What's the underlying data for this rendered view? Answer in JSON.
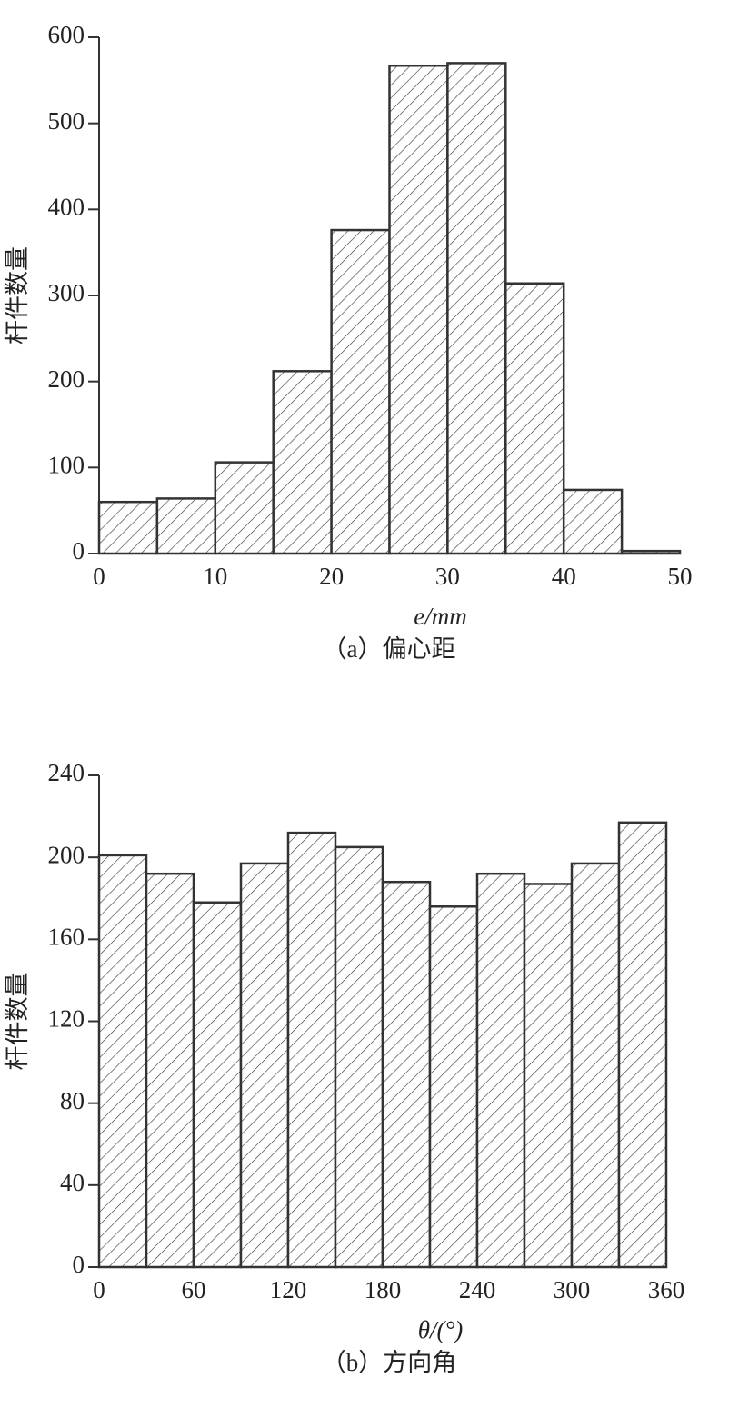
{
  "chart_data": [
    {
      "type": "histogram",
      "caption": "（a）偏心距",
      "x_label": "e/mm",
      "y_label": "杆件数量",
      "bins": [
        0,
        5,
        10,
        15,
        20,
        25,
        30,
        35,
        40,
        45,
        50
      ],
      "values": [
        60,
        64,
        106,
        212,
        376,
        567,
        570,
        314,
        74,
        3
      ],
      "xlim": [
        0,
        50
      ],
      "xticks": [
        0,
        10,
        20,
        30,
        40,
        50
      ],
      "ylim": [
        0,
        600
      ],
      "yticks": [
        0,
        100,
        200,
        300,
        400,
        500,
        600
      ],
      "color": "#333333",
      "hatch": true
    },
    {
      "type": "histogram",
      "caption": "（b）方向角",
      "x_label": "θ/(°)",
      "y_label": "杆件数量",
      "bins": [
        0,
        30,
        60,
        90,
        120,
        150,
        180,
        210,
        240,
        270,
        300,
        330,
        360
      ],
      "values": [
        201,
        192,
        178,
        197,
        212,
        205,
        188,
        176,
        192,
        187,
        197,
        217
      ],
      "xlim": [
        0,
        360
      ],
      "xticks": [
        0,
        60,
        120,
        180,
        240,
        300,
        360
      ],
      "ylim": [
        0,
        240
      ],
      "yticks": [
        0,
        40,
        80,
        120,
        160,
        200,
        240
      ],
      "color": "#333333",
      "hatch": true
    }
  ]
}
